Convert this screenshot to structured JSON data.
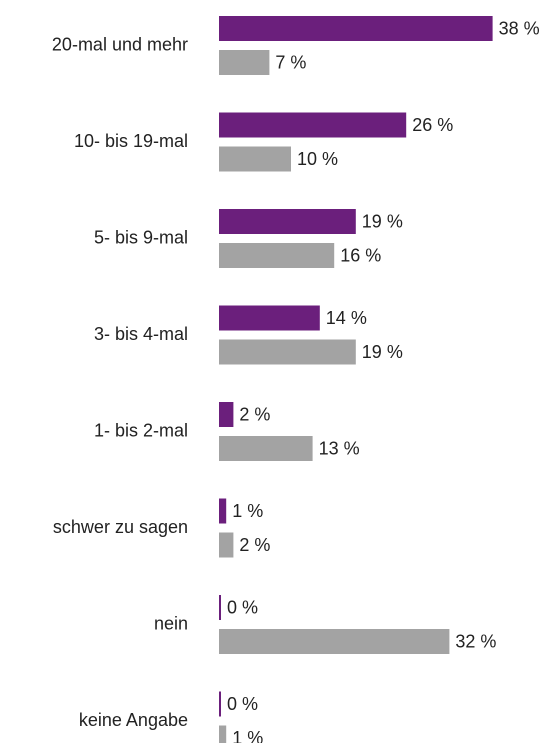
{
  "chart_data": {
    "type": "hbar",
    "categories": [
      "20-mal und mehr",
      "10- bis 19-mal",
      "5- bis 9-mal",
      "3- bis 4-mal",
      "1- bis 2-mal",
      "schwer zu sagen",
      "nein",
      "keine Angabe"
    ],
    "series": [
      {
        "color": "#6b1f7c",
        "values": [
          38,
          26,
          19,
          14,
          2,
          1,
          0,
          0
        ],
        "value_labels": [
          "38 %",
          "26 %",
          "19 %",
          "14 %",
          "2 %",
          "1 %",
          "0 %",
          "0 %"
        ]
      },
      {
        "color": "#a3a3a3",
        "values": [
          7,
          10,
          16,
          19,
          13,
          2,
          32,
          1
        ],
        "value_labels": [
          "7 %",
          "10 %",
          "16 %",
          "19 %",
          "13 %",
          "2 %",
          "32 %",
          "1 %"
        ]
      }
    ]
  }
}
